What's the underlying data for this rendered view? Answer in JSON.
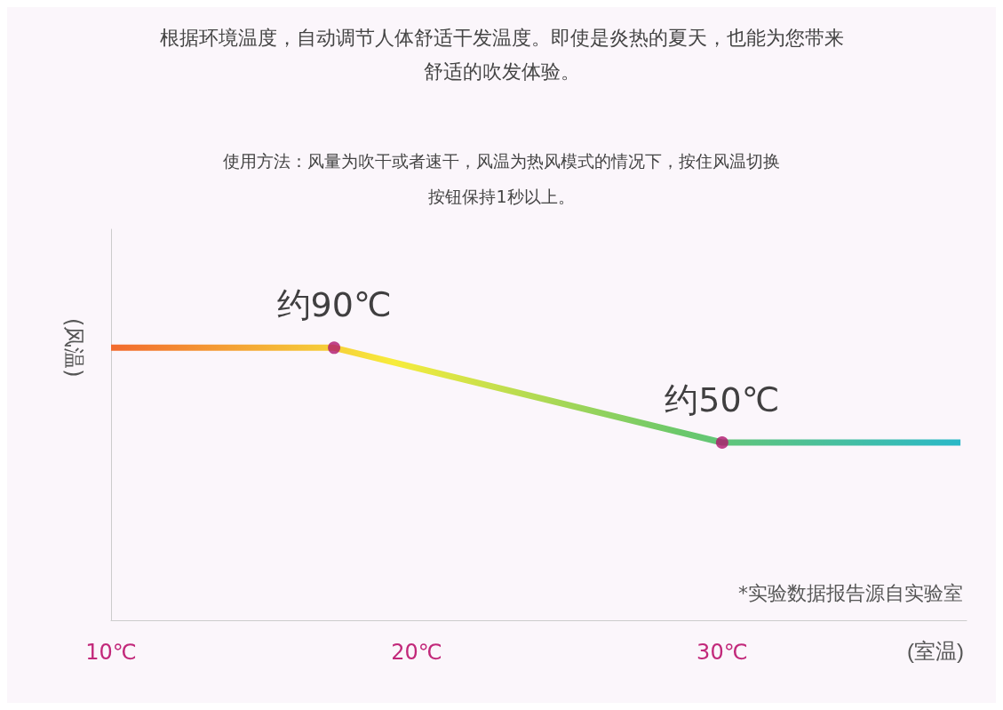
{
  "chart_data": {
    "type": "line",
    "title": "根据环境温度，自动调节人体舒适干发温度。即使是炎热的夏天，也能为您带来舒适的吹发体验。",
    "subtitle": "使用方法：风量为吹干或者速干，风温为热风模式的情况下，按住风温切换按钮保持1秒以上。",
    "xlabel": "(室温)",
    "ylabel": "(风温)",
    "annotations": [
      "*实验数据报告源自实验室"
    ],
    "xlim": [
      10,
      38
    ],
    "xticks": [
      {
        "value": 10,
        "label": "10℃"
      },
      {
        "value": 20,
        "label": "20℃"
      },
      {
        "value": 30,
        "label": "30℃"
      }
    ],
    "ylim": [
      -25,
      140
    ],
    "tick_labels": "x",
    "grid": false,
    "series": [
      {
        "x": [
          10,
          17.3,
          30,
          37.8
        ],
        "values": [
          90,
          90,
          50,
          50
        ],
        "colors": [
          "#f26a2e",
          "#f7ec3c",
          "#6cc86a",
          "#2ab8c8"
        ],
        "marker": "none"
      },
      {
        "type": "scatter",
        "x": [
          17.3,
          30
        ],
        "values": [
          90,
          50
        ],
        "color": "#b0166e",
        "marker": "circle",
        "value_labels": [
          "约90℃",
          "约50℃"
        ]
      }
    ]
  }
}
